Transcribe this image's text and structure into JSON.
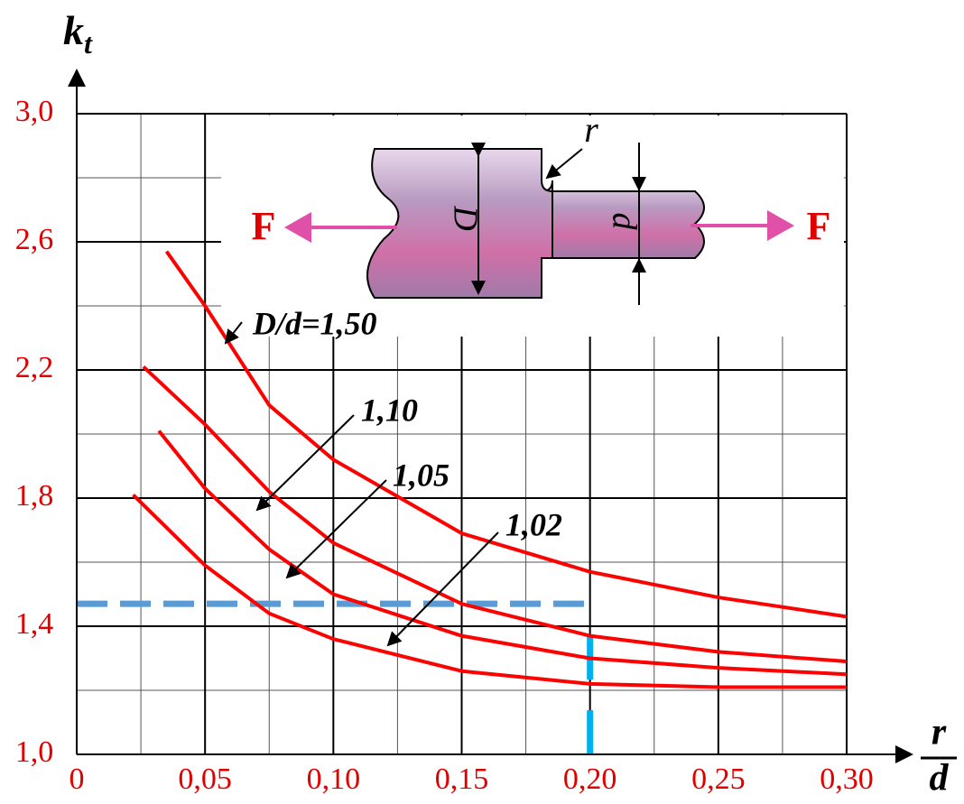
{
  "chart_data": {
    "type": "line",
    "y_label": {
      "text": "k",
      "subscript": "t"
    },
    "x_label": {
      "numerator": "r",
      "denominator": "d"
    },
    "xlim": [
      0,
      0.3
    ],
    "ylim": [
      1.0,
      3.0
    ],
    "xticks": [
      0,
      {
        "value": 0.05,
        "label": "0,05"
      },
      {
        "value": 0.1,
        "label": "0,10"
      },
      {
        "value": 0.15,
        "label": "0,15"
      },
      {
        "value": 0.2,
        "label": "0,20"
      },
      {
        "value": 0.25,
        "label": "0,25"
      },
      {
        "value": 0.3,
        "label": "0,30"
      }
    ],
    "yticks": [
      {
        "value": 1.0,
        "label": "1,0"
      },
      {
        "value": 1.4,
        "label": "1,4"
      },
      {
        "value": 1.8,
        "label": "1,8"
      },
      {
        "value": 2.2,
        "label": "2,2"
      },
      {
        "value": 2.6,
        "label": "2,6"
      },
      {
        "value": 3.0,
        "label": "3,0"
      }
    ],
    "x_minor_grid": [
      0.025,
      0.075,
      0.125,
      0.175,
      0.225,
      0.275
    ],
    "y_minor_grid": [
      1.2,
      1.6,
      2.0,
      2.4,
      2.8
    ],
    "grid": true,
    "series": [
      {
        "name": "D/d=1,50",
        "color": "#ff0000",
        "x": [
          0.035,
          0.05,
          0.075,
          0.1,
          0.15,
          0.2,
          0.25,
          0.3
        ],
        "values": [
          2.57,
          2.4,
          2.09,
          1.92,
          1.69,
          1.57,
          1.49,
          1.43
        ]
      },
      {
        "name": "1,10",
        "color": "#ff0000",
        "x": [
          0.026,
          0.05,
          0.075,
          0.1,
          0.15,
          0.2,
          0.25,
          0.3
        ],
        "values": [
          2.21,
          2.03,
          1.82,
          1.66,
          1.47,
          1.37,
          1.32,
          1.29
        ]
      },
      {
        "name": "1,05",
        "color": "#ff0000",
        "x": [
          0.032,
          0.05,
          0.075,
          0.1,
          0.15,
          0.2,
          0.25,
          0.3
        ],
        "values": [
          2.01,
          1.83,
          1.64,
          1.5,
          1.37,
          1.3,
          1.27,
          1.25
        ]
      },
      {
        "name": "1,02",
        "color": "#ff0000",
        "x": [
          0.022,
          0.05,
          0.075,
          0.1,
          0.15,
          0.2,
          0.25,
          0.3
        ],
        "values": [
          1.81,
          1.59,
          1.44,
          1.36,
          1.26,
          1.22,
          1.21,
          1.21
        ]
      }
    ],
    "reference": {
      "x": 0.2,
      "y": 1.47,
      "color": "#5b9bd5",
      "drop_color": "#00b0f0"
    }
  },
  "diagram": {
    "left_force": "F",
    "right_force": "F",
    "fillet": "r",
    "large_diameter": "D",
    "small_diameter": "d"
  }
}
